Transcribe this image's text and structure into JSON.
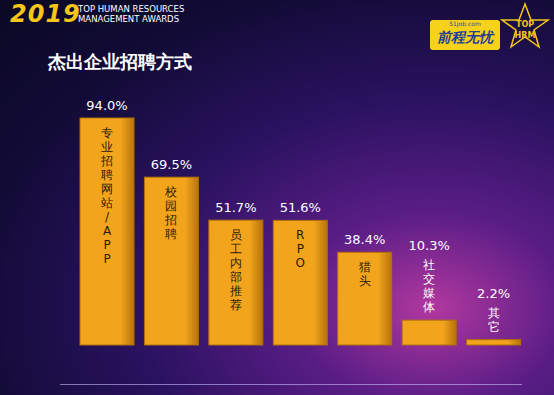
{
  "chart_data": {
    "type": "bar",
    "title": "杰出企业招聘方式",
    "annotations": [
      "2019",
      "TOP HUMAN RESOURCES",
      "MANAGEMENT AWARDS",
      "前程无忧",
      "51job.com",
      "TOP",
      "HRM"
    ],
    "categories": [
      "专业招聘网站/APP",
      "校园招聘",
      "员工内部推荐",
      "RPO",
      "猎头",
      "社交媒体",
      "其它"
    ],
    "values": [
      94.0,
      69.5,
      51.7,
      51.6,
      38.4,
      10.3,
      2.2
    ],
    "value_labels": [
      "94.0%",
      "69.5%",
      "51.7%",
      "51.6%",
      "38.4%",
      "10.3%",
      "2.2%"
    ],
    "color": "#f2a51c",
    "data_labels": true,
    "tick_labels": false
  }
}
